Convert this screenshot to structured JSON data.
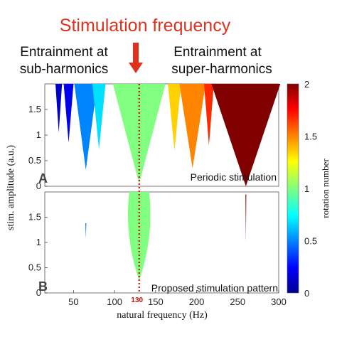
{
  "header": {
    "title": "Stimulation frequency",
    "title_color": "#e0301e",
    "left_label_line1": "Entrainment at",
    "left_label_line2": "sub-harmonics",
    "right_label_line1": "Entrainment at",
    "right_label_line2": "super-harmonics",
    "arrow_color": "#e0301e"
  },
  "chart_data": {
    "type": "heatmap",
    "xlabel": "natural frequency (Hz)",
    "ylabel": "stim. amplitude (a.u.)",
    "xlim": [
      15,
      300
    ],
    "ylim": [
      0,
      2
    ],
    "xticks": [
      50,
      100,
      150,
      200,
      250,
      300
    ],
    "yticks": [
      0,
      0.5,
      1,
      1.5
    ],
    "stimulation_frequency_marker": {
      "x": 130,
      "label": "130",
      "color": "#cc1111"
    },
    "colorbar": {
      "label": "rotation number",
      "range": [
        0,
        2
      ],
      "ticks": [
        0,
        0.5,
        1,
        1.5,
        2
      ],
      "colormap": "jet"
    },
    "panels": [
      {
        "id": "A",
        "letter": "A",
        "caption": "Periodic stimulation",
        "regions": [
          {
            "center": 32,
            "half_width_top": 4,
            "apex_amplitude": 1.05,
            "rotation": 0.12
          },
          {
            "center": 44,
            "half_width_top": 6,
            "apex_amplitude": 0.85,
            "rotation": 0.2
          },
          {
            "center": 65,
            "half_width_top": 14,
            "apex_amplitude": 0.32,
            "rotation": 0.5
          },
          {
            "center": 81,
            "half_width_top": 8,
            "apex_amplitude": 0.72,
            "rotation": 0.68
          },
          {
            "center": 130,
            "half_width_top": 32,
            "apex_amplitude": 0.05,
            "rotation": 1.0
          },
          {
            "center": 173,
            "half_width_top": 8,
            "apex_amplitude": 0.7,
            "rotation": 1.35
          },
          {
            "center": 195,
            "half_width_top": 16,
            "apex_amplitude": 0.35,
            "rotation": 1.5
          },
          {
            "center": 215,
            "half_width_top": 6,
            "apex_amplitude": 0.8,
            "rotation": 1.68
          },
          {
            "center": 260,
            "half_width_top": 42,
            "apex_amplitude": 0.0,
            "rotation": 2.0
          }
        ]
      },
      {
        "id": "B",
        "letter": "B",
        "caption": "Proposed stimulation pattern",
        "regions": [
          {
            "center": 130,
            "half_width_top": 16,
            "apex_amplitude": 0.25,
            "rotation": 1.0,
            "shape": "lens"
          },
          {
            "center": 65,
            "half_width_top": 0.6,
            "apex_amplitude": 1.08,
            "rotation": 0.5,
            "top_amplitude": 1.38
          },
          {
            "center": 260,
            "half_width_top": 0.5,
            "apex_amplitude": 1.0,
            "rotation": 2.0,
            "top_amplitude": 1.95
          }
        ]
      }
    ]
  }
}
